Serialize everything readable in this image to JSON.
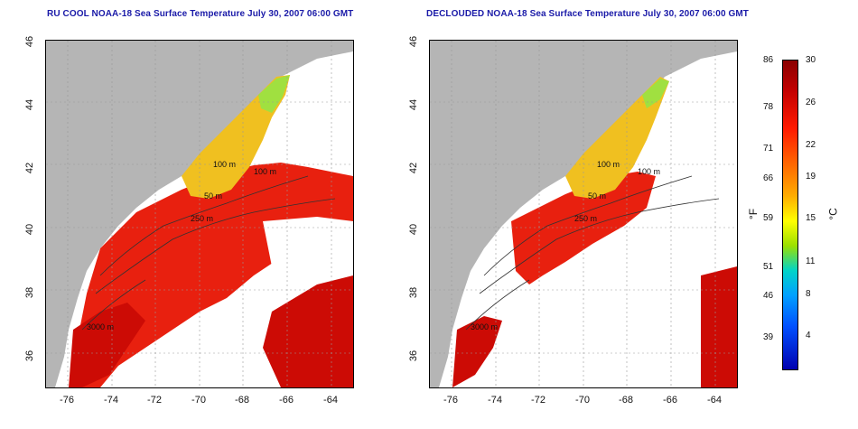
{
  "left_panel": {
    "title": "RU COOL NOAA-18 Sea Surface Temperature July 30, 2007 06:00 GMT"
  },
  "right_panel": {
    "title": "DECLOUDED NOAA-18 Sea Surface Temperature July 30, 2007 06:00 GMT"
  },
  "axes": {
    "lat_ticks": [
      "46",
      "44",
      "42",
      "40",
      "38",
      "36"
    ],
    "lon_ticks": [
      "-76",
      "-74",
      "-72",
      "-70",
      "-68",
      "-66",
      "-64"
    ]
  },
  "contours": [
    "100 m",
    "100 m",
    "50 m",
    "50 m",
    "250 m",
    "250 m",
    "3000 m"
  ],
  "colorbar": {
    "fahrenheit_ticks": [
      "86",
      "78",
      "71",
      "66",
      "59",
      "51",
      "46",
      "39"
    ],
    "celsius_ticks": [
      "30",
      "26",
      "22",
      "19",
      "15",
      "11",
      "8",
      "4"
    ],
    "f_unit": "°F",
    "c_unit": "°C"
  },
  "colors": {
    "title": "#1a1aa8",
    "land": "#b5b5b5",
    "ocean_bg": "#ffffff"
  }
}
